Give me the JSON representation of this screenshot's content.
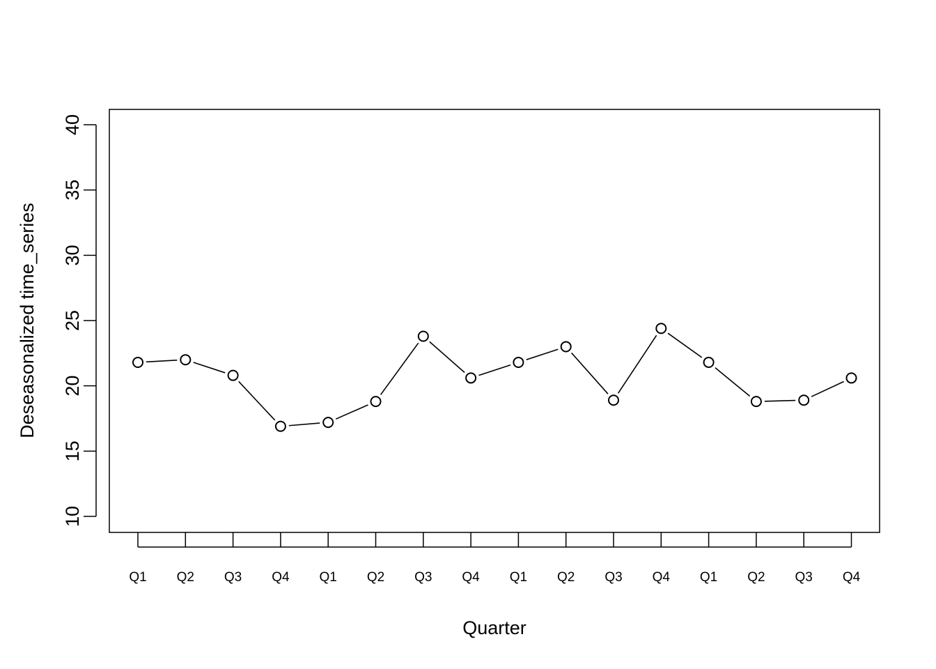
{
  "chart_data": {
    "type": "line",
    "title": "",
    "xlabel": "Quarter",
    "ylabel": "Deseasonalized time_series",
    "categories": [
      "Q1",
      "Q2",
      "Q3",
      "Q4",
      "Q1",
      "Q2",
      "Q3",
      "Q4",
      "Q1",
      "Q2",
      "Q3",
      "Q4",
      "Q1",
      "Q2",
      "Q3",
      "Q4"
    ],
    "series": [
      {
        "values": [
          21.8,
          22.0,
          20.8,
          16.9,
          17.2,
          18.8,
          23.8,
          20.6,
          21.8,
          23.0,
          18.9,
          24.4,
          21.8,
          18.8,
          18.9,
          20.6
        ]
      }
    ],
    "ylim": [
      10,
      40
    ],
    "y_ticks": [
      10,
      15,
      20,
      25,
      30,
      35,
      40
    ],
    "y_tick_labels": [
      "10",
      "15",
      "20",
      "25",
      "30",
      "35",
      "40"
    ],
    "marker": "open-circle",
    "line_style": "overplotted-both",
    "grid": false,
    "legend": "none",
    "colors": {
      "line": "#000000",
      "marker_stroke": "#000000",
      "marker_fill": "#ffffff",
      "frame": "#000000"
    }
  }
}
